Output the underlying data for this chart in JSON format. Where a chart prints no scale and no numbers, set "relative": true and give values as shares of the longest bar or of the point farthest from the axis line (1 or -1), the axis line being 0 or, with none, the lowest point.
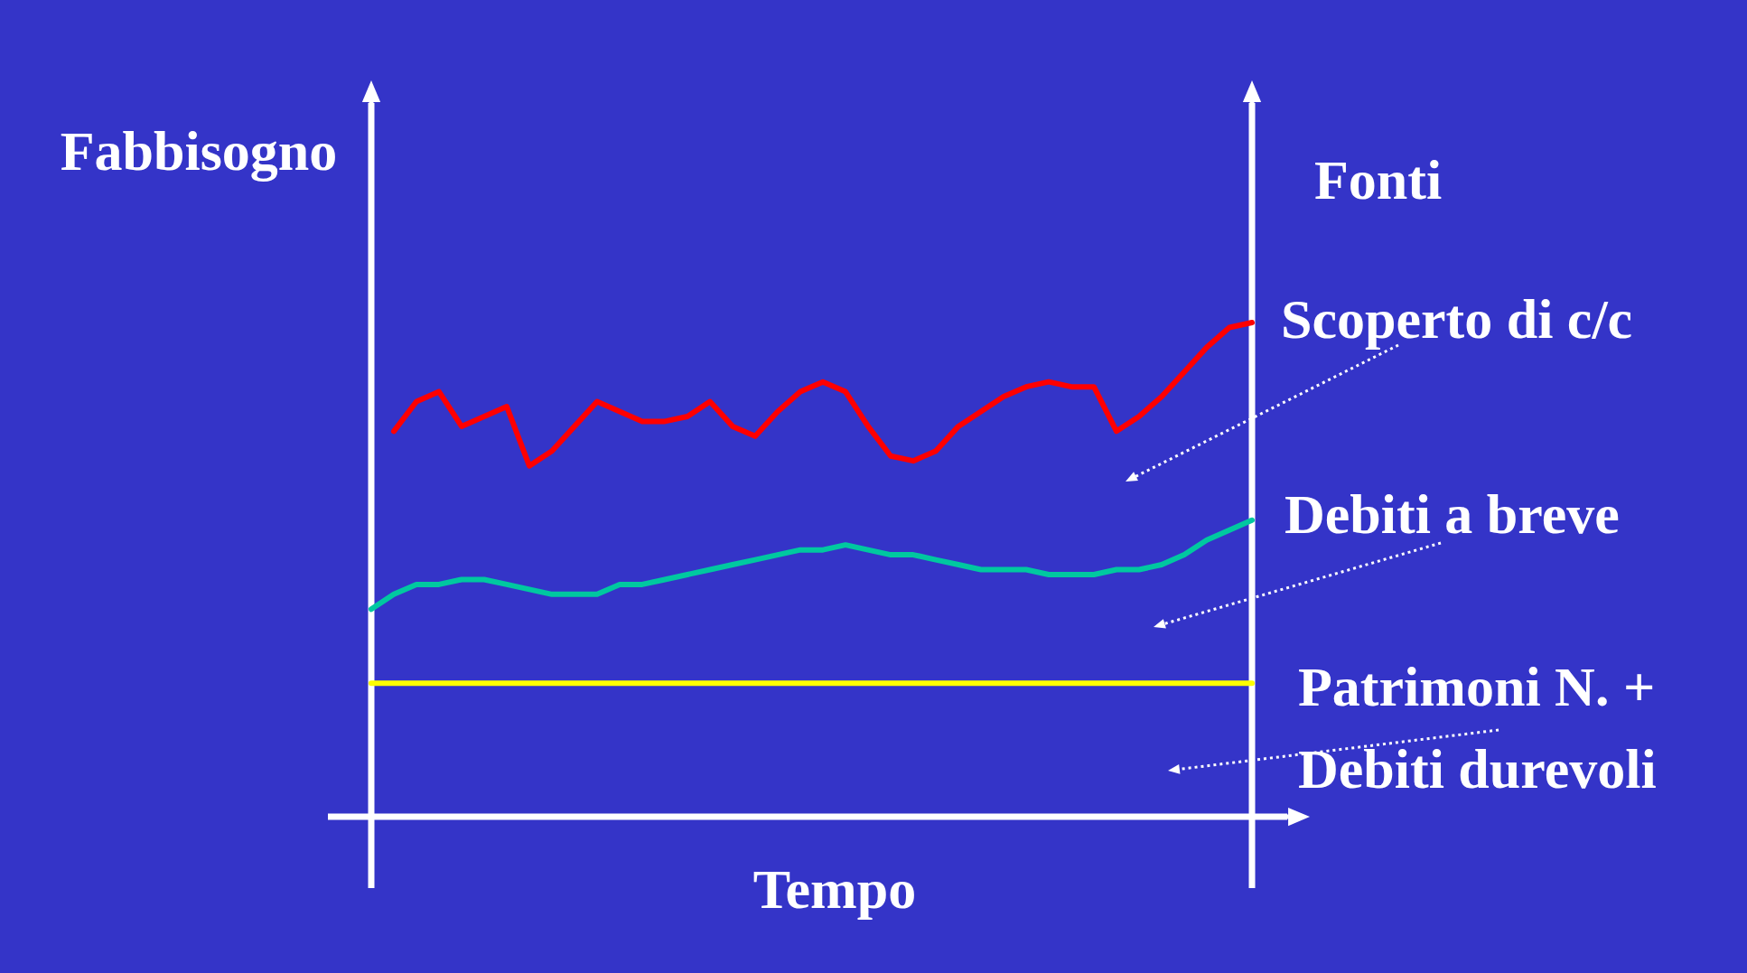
{
  "chart_data": {
    "type": "line",
    "relative": true,
    "ylabel": "Fabbisogno",
    "xlabel": "Tempo",
    "annotations": [
      "Fonti"
    ],
    "legend": false,
    "marker": "none",
    "tick_labels": false,
    "categories": [
      null,
      null,
      null,
      null,
      null,
      null,
      null,
      null,
      null,
      null,
      null,
      null,
      null,
      null,
      null,
      null,
      null,
      null,
      null,
      null,
      null,
      null,
      null,
      null,
      null,
      null,
      null,
      null,
      null,
      null,
      null,
      null,
      null,
      null,
      null,
      null,
      null,
      null,
      null,
      null
    ],
    "series": [
      {
        "name": "Scoperto di c/c",
        "color": "#ff0000",
        "values": [
          null,
          0.78,
          0.84,
          0.86,
          0.79,
          0.81,
          0.83,
          0.71,
          0.74,
          0.79,
          0.84,
          0.82,
          0.8,
          0.8,
          0.81,
          0.84,
          0.79,
          0.77,
          0.82,
          0.86,
          0.88,
          0.86,
          0.79,
          0.73,
          0.72,
          0.74,
          0.79,
          0.82,
          0.85,
          0.87,
          0.88,
          0.87,
          0.87,
          0.78,
          0.81,
          0.85,
          0.9,
          0.95,
          0.99,
          1
        ]
      },
      {
        "name": "Debiti a breve",
        "color": "#00c8a0",
        "values": [
          0.42,
          0.45,
          0.47,
          0.47,
          0.48,
          0.48,
          0.47,
          0.46,
          0.45,
          0.45,
          0.45,
          0.47,
          0.47,
          0.48,
          0.49,
          0.5,
          0.51,
          0.52,
          0.53,
          0.54,
          0.54,
          0.55,
          0.54,
          0.53,
          0.53,
          0.52,
          0.51,
          0.5,
          0.5,
          0.5,
          0.49,
          0.49,
          0.49,
          0.5,
          0.5,
          0.51,
          0.53,
          0.56,
          0.58,
          0.6
        ]
      },
      {
        "name": "Patrimoni N. + Debiti durevoli",
        "color": "#ffff00",
        "values": [
          0.27,
          0.27,
          0.27,
          0.27,
          0.27,
          0.27,
          0.27,
          0.27,
          0.27,
          0.27,
          0.27,
          0.27,
          0.27,
          0.27,
          0.27,
          0.27,
          0.27,
          0.27,
          0.27,
          0.27,
          0.27,
          0.27,
          0.27,
          0.27,
          0.27,
          0.27,
          0.27,
          0.27,
          0.27,
          0.27,
          0.27,
          0.27,
          0.27,
          0.27,
          0.27,
          0.27,
          0.27,
          0.27,
          0.27,
          0.27
        ]
      }
    ]
  }
}
